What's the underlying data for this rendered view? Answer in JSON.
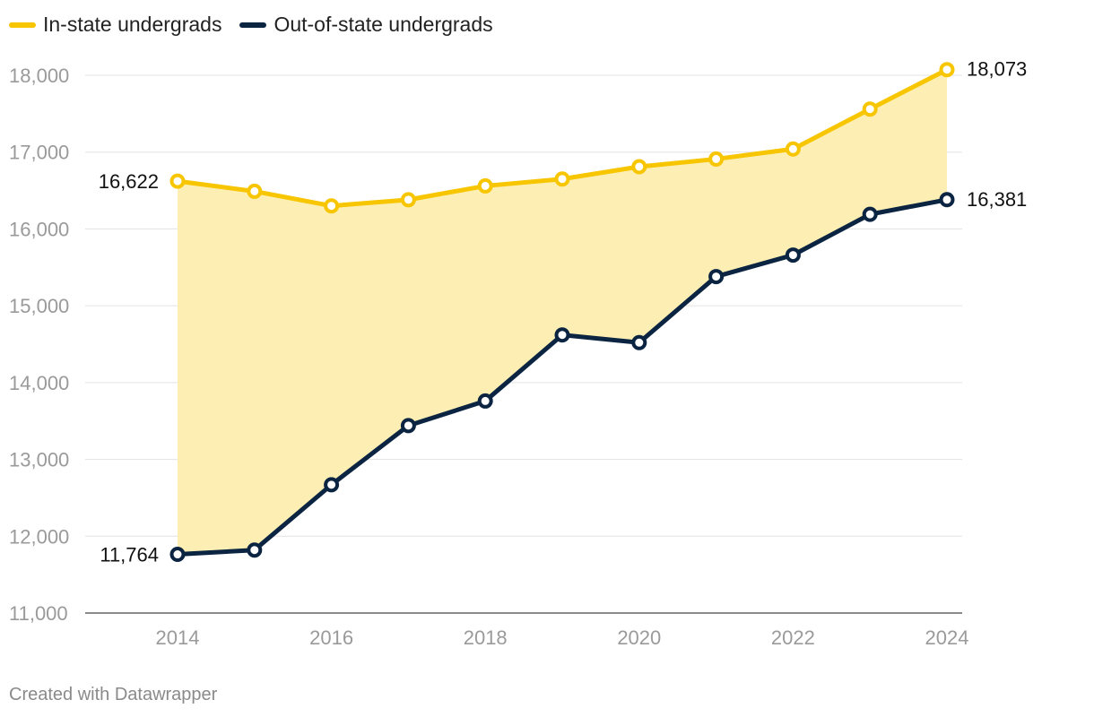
{
  "chart_data": {
    "type": "line",
    "title": "",
    "xlabel": "",
    "ylabel": "",
    "x": [
      2014,
      2015,
      2016,
      2017,
      2018,
      2019,
      2020,
      2021,
      2022,
      2023,
      2024
    ],
    "x_ticks": [
      "2014",
      "2016",
      "2018",
      "2020",
      "2022",
      "2024"
    ],
    "y_ticks": [
      "11,000",
      "12,000",
      "13,000",
      "14,000",
      "15,000",
      "16,000",
      "17,000",
      "18,000"
    ],
    "ylim": [
      11000,
      18000
    ],
    "series": [
      {
        "name": "In-state undergrads",
        "color": "#f7c600",
        "values": [
          16622,
          16490,
          16300,
          16380,
          16560,
          16650,
          16810,
          16910,
          17040,
          17560,
          18073
        ],
        "labels": {
          "first": "16,622",
          "last": "18,073"
        }
      },
      {
        "name": "Out-of-state undergrads",
        "color": "#0b2442",
        "values": [
          11764,
          11820,
          12670,
          13440,
          13760,
          14620,
          14520,
          15380,
          15660,
          16190,
          16381
        ],
        "labels": {
          "first": "11,764",
          "last": "16,381"
        }
      }
    ],
    "area_fill": "#fdefb3",
    "grid": true,
    "legend": "top-left"
  },
  "footer": "Created with Datawrapper"
}
